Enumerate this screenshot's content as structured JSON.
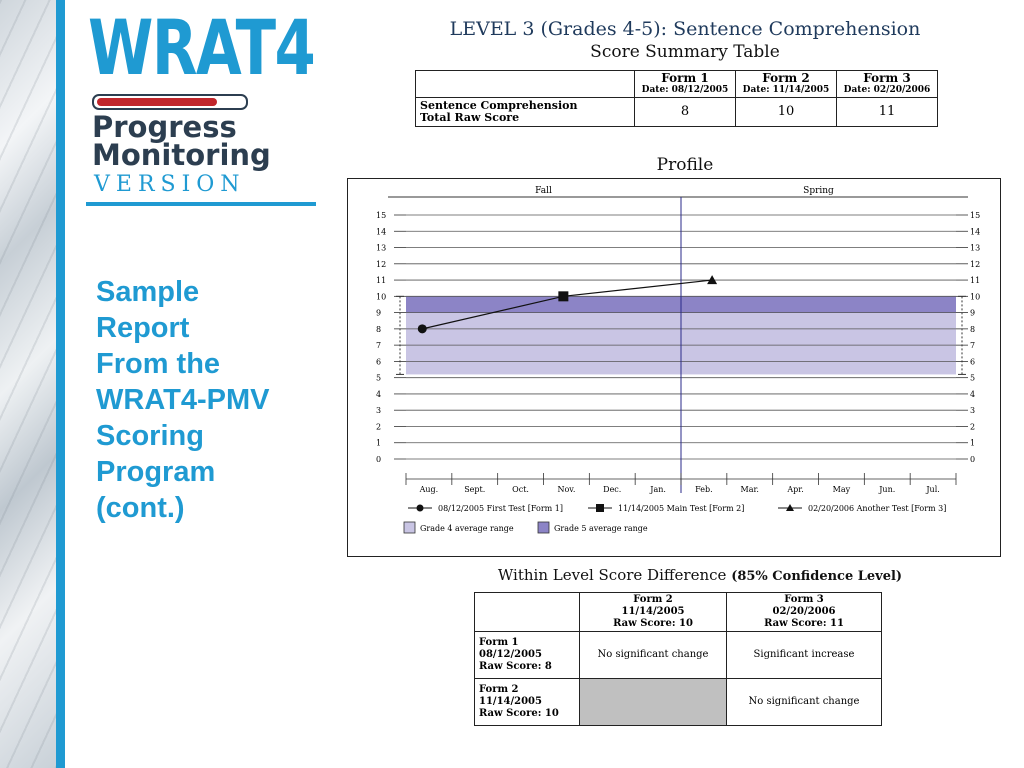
{
  "logo": {
    "wrat": "WRAT4",
    "line1": "Progress",
    "line2": "Monitoring",
    "version": "VERSION"
  },
  "side_title": {
    "lines": [
      "Sample",
      "Report",
      "From the",
      "WRAT4-PMV",
      "Scoring",
      "Program",
      "(cont.)"
    ]
  },
  "report": {
    "title": "LEVEL 3 (Grades 4-5): Sentence Comprehension",
    "subtitle": "Score Summary Table",
    "profile_title": "Profile",
    "diff_title_main": "Within Level Score Difference",
    "diff_title_bold": "(85% Confidence Level)"
  },
  "score_table": {
    "headers": [
      {
        "form": "Form 1",
        "date": "Date: 08/12/2005"
      },
      {
        "form": "Form 2",
        "date": "Date: 11/14/2005"
      },
      {
        "form": "Form 3",
        "date": "Date: 02/20/2006"
      }
    ],
    "row_label_1": "Sentence Comprehension",
    "row_label_2": "Total Raw Score",
    "values": [
      "8",
      "10",
      "11"
    ]
  },
  "diff_table": {
    "col_headers": [
      {
        "form": "Form 2",
        "date": "11/14/2005",
        "raw": "Raw Score: 10"
      },
      {
        "form": "Form 3",
        "date": "02/20/2006",
        "raw": "Raw Score: 11"
      }
    ],
    "rows": [
      {
        "form": "Form 1",
        "date": "08/12/2005",
        "raw": "Raw Score: 8",
        "cells": [
          "No significant change",
          "Significant increase"
        ]
      },
      {
        "form": "Form 2",
        "date": "11/14/2005",
        "raw": "Raw Score: 10",
        "cells": [
          "",
          "No significant change"
        ]
      }
    ]
  },
  "colors": {
    "accent": "#1f9ad2",
    "navy": "#2c3e50",
    "grade4_band": "#c9c5e4",
    "grade5_band": "#8c84c6",
    "grey_cell": "#c0c0c0"
  },
  "chart_data": {
    "type": "line",
    "season_labels": [
      "Fall",
      "Spring"
    ],
    "months": [
      "Aug.",
      "Sept.",
      "Oct.",
      "Nov.",
      "Dec.",
      "Jan.",
      "Feb.",
      "Mar.",
      "Apr.",
      "May",
      "Jun.",
      "Jul."
    ],
    "y_ticks": [
      0,
      1,
      2,
      3,
      4,
      5,
      6,
      7,
      8,
      9,
      10,
      11,
      12,
      13,
      14,
      15
    ],
    "ylim": [
      0,
      15
    ],
    "series": [
      {
        "name": "",
        "points": [
          {
            "x": "2005-08-12",
            "y": 8,
            "marker": "circle",
            "legend": "08/12/2005 First Test [Form 1]"
          },
          {
            "x": "2005-11-14",
            "y": 10,
            "marker": "square",
            "legend": "11/14/2005 Main Test [Form 2]"
          },
          {
            "x": "2006-02-20",
            "y": 11,
            "marker": "triangle",
            "legend": "02/20/2006 Another Test [Form 3]"
          }
        ]
      }
    ],
    "bands": [
      {
        "legend": "Grade 4 average range",
        "range": [
          5.2,
          9
        ],
        "color": "#c9c5e4"
      },
      {
        "legend": "Grade 5 average range",
        "range": [
          9,
          10
        ],
        "color": "#8c84c6"
      }
    ],
    "divider_between": [
      "Jan.",
      "Feb."
    ],
    "grid": true
  }
}
